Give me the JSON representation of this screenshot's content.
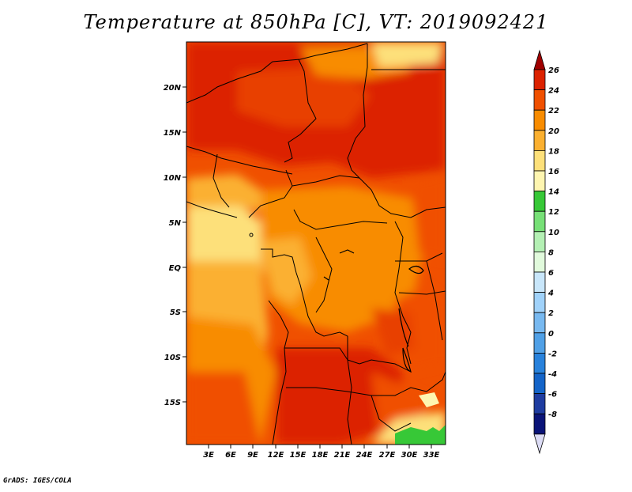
{
  "title": "Temperature at 850hPa [C], VT: 2019092421",
  "footer": "GrADS: IGES/COLA",
  "map": {
    "lat_ticks": [
      "20N",
      "15N",
      "10N",
      "5N",
      "EQ",
      "5S",
      "10S",
      "15S"
    ],
    "lon_ticks": [
      "3E",
      "6E",
      "9E",
      "12E",
      "15E",
      "18E",
      "21E",
      "24E",
      "27E",
      "30E",
      "33E"
    ]
  },
  "legend": {
    "levels": [
      "26",
      "24",
      "22",
      "20",
      "18",
      "16",
      "14",
      "12",
      "10",
      "8",
      "6",
      "4",
      "2",
      "0",
      "-2",
      "-4",
      "-6",
      "-8"
    ],
    "colors": [
      "#a00000",
      "#dc2200",
      "#f05000",
      "#f88c00",
      "#fbb030",
      "#fde07a",
      "#fef5b0",
      "#37c837",
      "#77e077",
      "#b4f0b4",
      "#e1fadc",
      "#c8e6fa",
      "#a0d2fa",
      "#78b9f0",
      "#50a0e6",
      "#2882dc",
      "#1464c8",
      "#1e3ca0",
      "#0a1478",
      "#dcdcf5"
    ]
  }
}
